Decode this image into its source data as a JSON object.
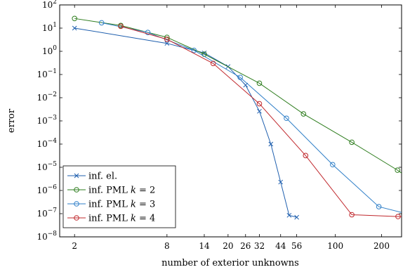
{
  "chart_data": {
    "type": "line",
    "xlabel": "number of exterior unknowns",
    "ylabel": "error",
    "xscale": "log",
    "yscale": "log",
    "xlim": [
      1.6,
      270
    ],
    "ylim": [
      1e-08,
      100
    ],
    "xticks": [
      2,
      8,
      14,
      20,
      26,
      32,
      44,
      56,
      100,
      200
    ],
    "xtick_labels": [
      "2",
      "8",
      "14",
      "20",
      "26",
      "32",
      "44",
      "56",
      "100",
      "200"
    ],
    "yticks": [
      1e-08,
      1e-07,
      1e-06,
      1e-05,
      0.0001,
      0.001,
      0.01,
      0.1,
      1,
      10,
      100
    ],
    "ytick_labels": [
      {
        "base": "10",
        "exp": "−8"
      },
      {
        "base": "10",
        "exp": "−7"
      },
      {
        "base": "10",
        "exp": "−6"
      },
      {
        "base": "10",
        "exp": "−5"
      },
      {
        "base": "10",
        "exp": "−4"
      },
      {
        "base": "10",
        "exp": "−3"
      },
      {
        "base": "10",
        "exp": "−2"
      },
      {
        "base": "10",
        "exp": "−1"
      },
      {
        "base": "10",
        "exp": "0"
      },
      {
        "base": "10",
        "exp": "1"
      },
      {
        "base": "10",
        "exp": "2"
      }
    ],
    "grid": false,
    "legend_position": "bottom-left",
    "series": [
      {
        "name": "inf. el.",
        "label_main": "inf. el.",
        "label_var": "",
        "label_rest": "",
        "color": "#1f5fae",
        "marker": "cross",
        "x": [
          2,
          8,
          14,
          20,
          26,
          32,
          38,
          44,
          50,
          56
        ],
        "y": [
          10,
          2.2,
          0.85,
          0.22,
          0.035,
          0.0026,
          0.0001,
          2.3e-06,
          8.5e-08,
          7e-08
        ]
      },
      {
        "name": "inf. PML k = 2",
        "label_main": "inf. PML ",
        "label_var": "k",
        "label_rest": " = 2",
        "color": "#2e7d1e",
        "marker": "circle",
        "x": [
          2,
          4,
          8,
          14,
          32,
          62,
          128,
          254,
          290
        ],
        "y": [
          26,
          13,
          4.0,
          0.75,
          0.042,
          0.002,
          0.00012,
          7.5e-06,
          4e-06
        ]
      },
      {
        "name": "inf. PML k = 3",
        "label_main": "inf. PML ",
        "label_var": "k",
        "label_rest": " = 3",
        "color": "#2f7fc8",
        "marker": "circle",
        "x": [
          3,
          6,
          12,
          24,
          48,
          96,
          192,
          290
        ],
        "y": [
          17,
          6.5,
          1.1,
          0.075,
          0.0013,
          1.3e-05,
          2e-07,
          1e-07
        ]
      },
      {
        "name": "inf. PML k = 4",
        "label_main": "inf. PML ",
        "label_var": "k",
        "label_rest": " = 4",
        "color": "#c0282d",
        "marker": "circle",
        "x": [
          4,
          8,
          16,
          32,
          64,
          128,
          256,
          290
        ],
        "y": [
          12,
          3.3,
          0.3,
          0.0055,
          3.2e-05,
          9e-08,
          7.5e-08,
          7.5e-08
        ]
      }
    ]
  }
}
